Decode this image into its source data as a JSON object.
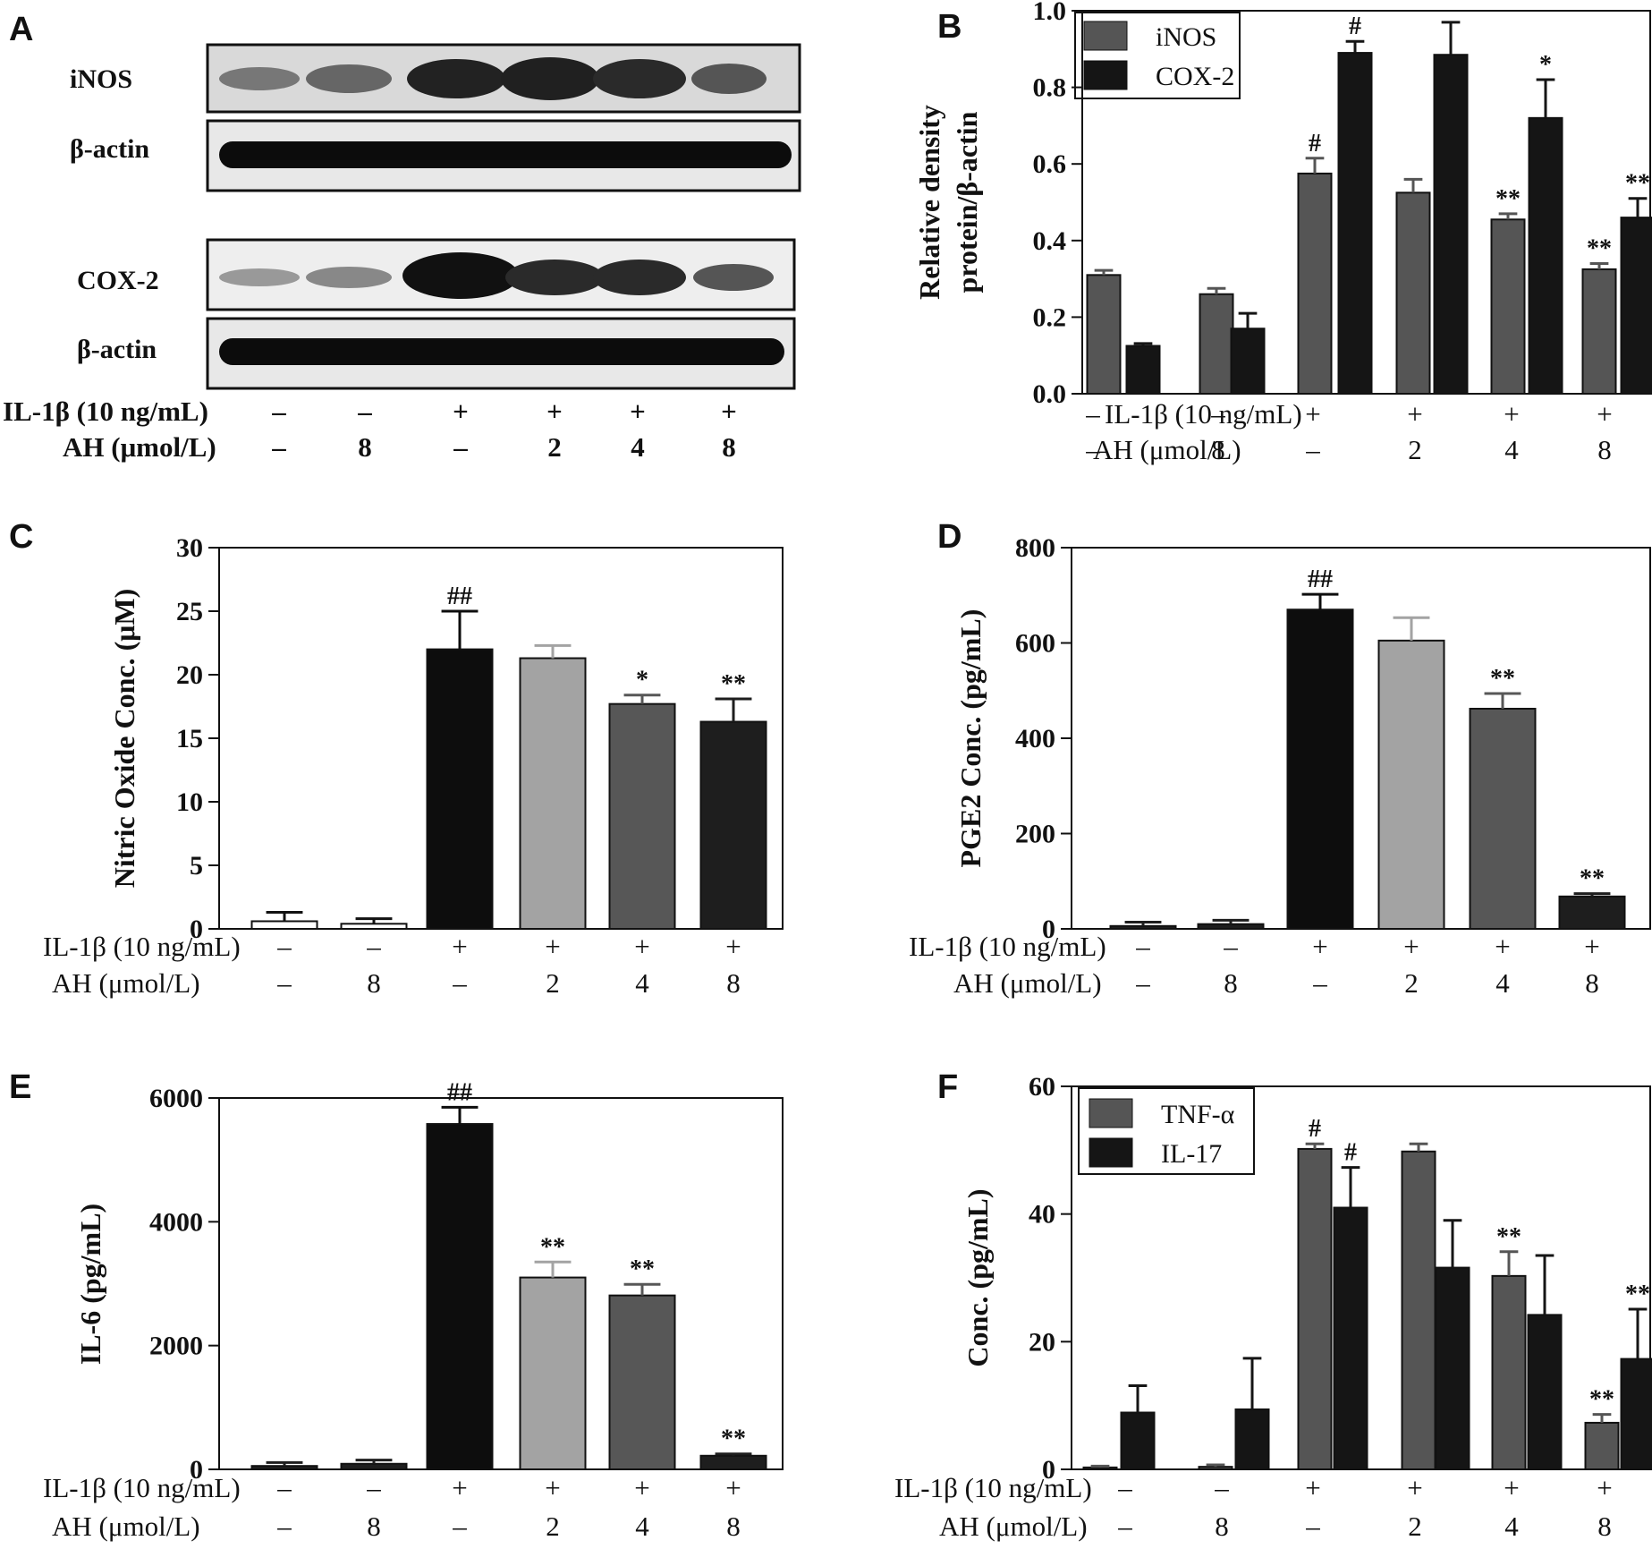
{
  "conditions": {
    "il1b_label": "IL-1β (10 ng/mL)",
    "ah_label": "AH (μmol/L)",
    "il1b": [
      "–",
      "–",
      "+",
      "+",
      "+",
      "+"
    ],
    "ah": [
      "–",
      "8",
      "–",
      "2",
      "4",
      "8"
    ]
  },
  "blot": {
    "panel_label": "A",
    "rows": [
      "iNOS",
      "β-actin",
      "COX-2",
      "β-actin"
    ]
  },
  "chart_data": [
    {
      "panel": "B",
      "type": "bar",
      "ylabel": [
        "Relative density",
        "protein/β-actin"
      ],
      "ylim": [
        0,
        1.0
      ],
      "yticks": [
        "0.0",
        "0.2",
        "0.4",
        "0.6",
        "0.8",
        "1.0"
      ],
      "legend": "top-left",
      "series": [
        {
          "name": "iNOS",
          "color": "#555555",
          "values": [
            0.31,
            0.26,
            0.575,
            0.525,
            0.455,
            0.325
          ],
          "errors": [
            0.012,
            0.015,
            0.04,
            0.035,
            0.015,
            0.015
          ],
          "sig": [
            "",
            "",
            "#",
            "",
            "**",
            "**"
          ]
        },
        {
          "name": "COX-2",
          "color": "#151515",
          "values": [
            0.125,
            0.17,
            0.89,
            0.885,
            0.72,
            0.46
          ],
          "errors": [
            0.006,
            0.04,
            0.03,
            0.085,
            0.1,
            0.05
          ],
          "sig": [
            "",
            "",
            "#",
            "",
            "*",
            "**"
          ]
        }
      ]
    },
    {
      "panel": "C",
      "type": "bar",
      "ylabel": [
        "Nitric Oxide Conc. (μM)"
      ],
      "ylim": [
        0,
        30
      ],
      "yticks": [
        "0",
        "5",
        "10",
        "15",
        "20",
        "25",
        "30"
      ],
      "values": [
        0.6,
        0.4,
        22.0,
        21.3,
        17.7,
        16.3
      ],
      "errors": [
        0.7,
        0.4,
        3.0,
        1.0,
        0.7,
        1.8
      ],
      "colors": [
        "#ffffff",
        "#ffffff",
        "#0d0d0d",
        "#a3a3a3",
        "#575757",
        "#1e1e1e"
      ],
      "sig": [
        "",
        "",
        "##",
        "",
        "*",
        "**"
      ]
    },
    {
      "panel": "D",
      "type": "bar",
      "ylabel": [
        "PGE2 Conc. (pg/mL)"
      ],
      "ylim": [
        0,
        800
      ],
      "yticks": [
        "0",
        "200",
        "400",
        "600",
        "800"
      ],
      "values": [
        6,
        10,
        670,
        605,
        462,
        68
      ],
      "errors": [
        8,
        8,
        32,
        48,
        32,
        6
      ],
      "colors": [
        "#1e1e1e",
        "#1e1e1e",
        "#0d0d0d",
        "#a3a3a3",
        "#575757",
        "#1e1e1e"
      ],
      "sig": [
        "",
        "",
        "##",
        "",
        "**",
        "**"
      ]
    },
    {
      "panel": "E",
      "type": "bar",
      "ylabel": [
        "IL-6 (pg/mL)"
      ],
      "ylim": [
        0,
        6000
      ],
      "yticks": [
        "0",
        "2000",
        "4000",
        "6000"
      ],
      "values": [
        55,
        90,
        5580,
        3100,
        2810,
        220
      ],
      "errors": [
        55,
        60,
        270,
        250,
        180,
        30
      ],
      "colors": [
        "#1e1e1e",
        "#1e1e1e",
        "#0d0d0d",
        "#a3a3a3",
        "#575757",
        "#1e1e1e"
      ],
      "sig": [
        "",
        "",
        "##",
        "**",
        "**",
        "**"
      ]
    },
    {
      "panel": "F",
      "type": "bar",
      "ylabel": [
        "Conc. (pg/mL)"
      ],
      "ylim": [
        0,
        60
      ],
      "yticks": [
        "0",
        "20",
        "40",
        "60"
      ],
      "legend": "top-left",
      "series": [
        {
          "name": "TNF-α",
          "color": "#555555",
          "values": [
            0.3,
            0.4,
            50.2,
            49.8,
            30.3,
            7.3
          ],
          "errors": [
            0.2,
            0.3,
            0.8,
            1.2,
            3.8,
            1.3
          ],
          "sig": [
            "",
            "",
            "#",
            "",
            "**",
            "**"
          ]
        },
        {
          "name": "IL-17",
          "color": "#151515",
          "values": [
            8.9,
            9.4,
            41.0,
            31.6,
            24.2,
            17.3
          ],
          "errors": [
            4.2,
            8.0,
            6.3,
            7.4,
            9.3,
            7.8
          ],
          "sig": [
            "",
            "",
            "#",
            "",
            "",
            "**"
          ]
        }
      ]
    }
  ]
}
